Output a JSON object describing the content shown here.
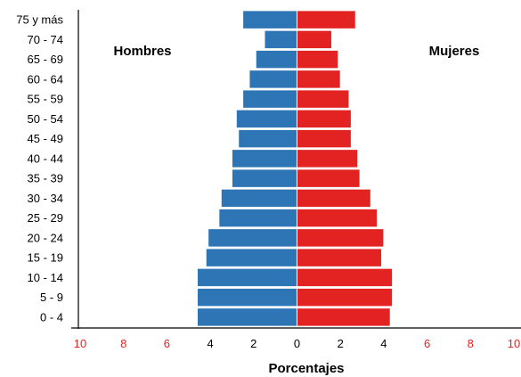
{
  "chart_data": {
    "type": "bar",
    "orientation": "horizontal",
    "layout": "population-pyramid",
    "categories": [
      "0 - 4",
      "5 - 9",
      "10 - 14",
      "15 - 19",
      "20 - 24",
      "25 - 29",
      "30 - 34",
      "35 - 39",
      "40 - 44",
      "45 - 49",
      "50 - 54",
      "55 - 59",
      "60 - 64",
      "65 - 69",
      "70 - 74",
      "75 y más"
    ],
    "series": [
      {
        "name": "Hombres",
        "side": "left",
        "color": "#2E75B6",
        "values": [
          4.6,
          4.6,
          4.6,
          4.2,
          4.1,
          3.6,
          3.5,
          3.0,
          3.0,
          2.7,
          2.8,
          2.5,
          2.2,
          1.9,
          1.5,
          2.5
        ]
      },
      {
        "name": "Mujeres",
        "side": "right",
        "color": "#E32222",
        "values": [
          4.3,
          4.4,
          4.4,
          3.9,
          4.0,
          3.7,
          3.4,
          2.9,
          2.8,
          2.5,
          2.5,
          2.4,
          2.0,
          1.9,
          1.6,
          2.7
        ]
      }
    ],
    "xlim": [
      -10,
      10
    ],
    "x_ticks": [
      -10,
      -8,
      -6,
      -4,
      -2,
      0,
      2,
      4,
      6,
      8,
      10
    ],
    "x_tick_labels": [
      "10",
      "8",
      "6",
      "4",
      "2",
      "0",
      "2",
      "4",
      "6",
      "8",
      "10"
    ],
    "x_tick_colors": {
      "outer": "#E32222",
      "inner": "#000000"
    },
    "xlabel": "Porcentajes",
    "ylabel": "",
    "grid": false,
    "legend": "none"
  }
}
